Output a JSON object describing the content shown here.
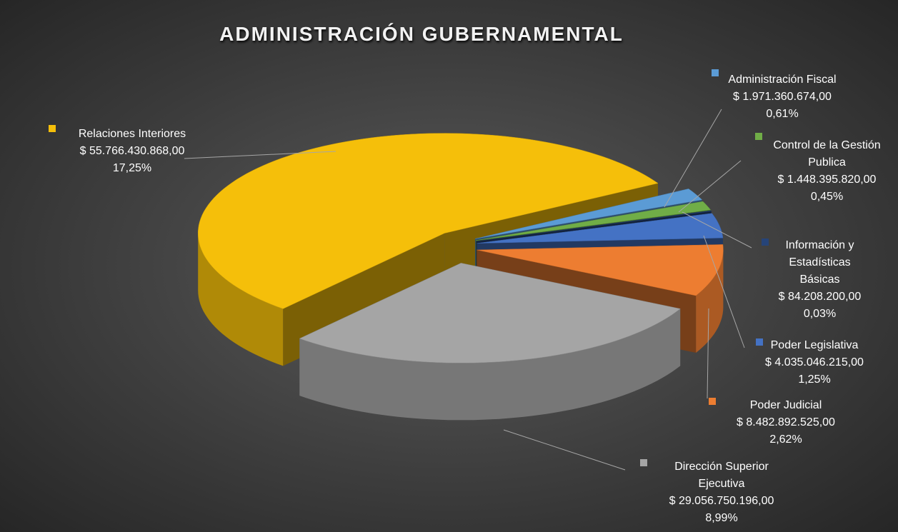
{
  "chart_data": {
    "type": "pie3d",
    "title": "ADMINISTRACIÓN GUBERNAMENTAL",
    "categories": [
      "Relaciones Interiores",
      "Dirección Superior Ejecutiva",
      "Poder Judicial",
      "Poder Legislativa",
      "Información y Estadísticas Básicas",
      "Control de la Gestión Publica",
      "Administración Fiscal"
    ],
    "values": [
      55766430868,
      29056750196,
      8482892525,
      4035046215,
      84208200,
      1448395820,
      1971360674
    ],
    "value_labels": [
      "$ 55.766.430.868,00",
      "$ 29.056.750.196,00",
      "$ 8.482.892.525,00",
      "$ 4.035.046.215,00",
      "$ 84.208.200,00",
      "$ 1.448.395.820,00",
      "$ 1.971.360.674,00"
    ],
    "shares": [
      17.25,
      8.99,
      2.62,
      1.25,
      0.03,
      0.45,
      0.61
    ],
    "share_labels": [
      "17,25%",
      "8,99%",
      "2,62%",
      "1,25%",
      "0,03%",
      "0,45%",
      "0,61%"
    ],
    "colors": [
      "#f5bf0a",
      "#a5a5a5",
      "#ed7d31",
      "#4472c4",
      "#264478",
      "#70ad47",
      "#5b9bd5"
    ]
  }
}
